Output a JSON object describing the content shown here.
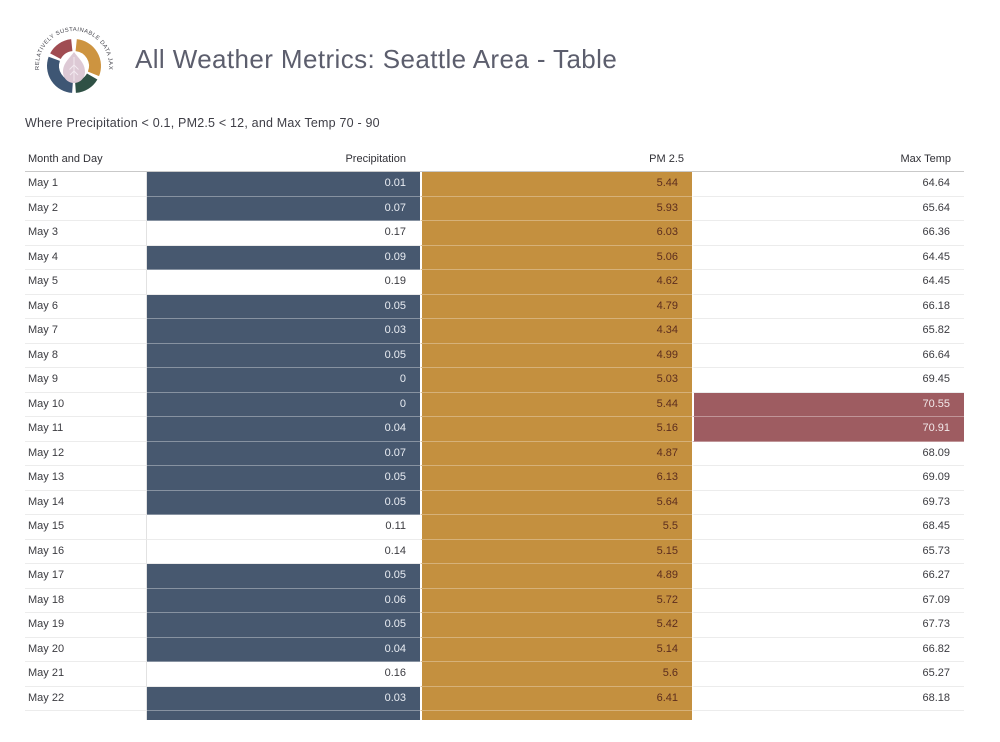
{
  "header": {
    "title": "All Weather Metrics: Seattle Area - Table",
    "logo_text": "RELATIVELY SUSTAINABLE DATA JAX"
  },
  "filter_text": "Where Precipitation < 0.1, PM2.5 < 12, and Max Temp 70 - 90",
  "chart_data": {
    "type": "table",
    "title": "All Weather Metrics: Seattle Area - Table",
    "subtitle": "Where Precipitation < 0.1, PM2.5 < 12, and Max Temp 70 - 90",
    "columns": [
      "Month and Day",
      "Precipitation",
      "PM 2.5",
      "Max Temp"
    ],
    "rows": [
      [
        "May 1",
        0.01,
        5.44,
        64.64
      ],
      [
        "May 2",
        0.07,
        5.93,
        65.64
      ],
      [
        "May 3",
        0.17,
        6.03,
        66.36
      ],
      [
        "May 4",
        0.09,
        5.06,
        64.45
      ],
      [
        "May 5",
        0.19,
        4.62,
        64.45
      ],
      [
        "May 6",
        0.05,
        4.79,
        66.18
      ],
      [
        "May 7",
        0.03,
        4.34,
        65.82
      ],
      [
        "May 8",
        0.05,
        4.99,
        66.64
      ],
      [
        "May 9",
        0,
        5.03,
        69.45
      ],
      [
        "May 10",
        0,
        5.44,
        70.55
      ],
      [
        "May 11",
        0.04,
        5.16,
        70.91
      ],
      [
        "May 12",
        0.07,
        4.87,
        68.09
      ],
      [
        "May 13",
        0.05,
        6.13,
        69.09
      ],
      [
        "May 14",
        0.05,
        5.64,
        69.73
      ],
      [
        "May 15",
        0.11,
        5.5,
        68.45
      ],
      [
        "May 16",
        0.14,
        5.15,
        65.73
      ],
      [
        "May 17",
        0.05,
        4.89,
        66.27
      ],
      [
        "May 18",
        0.06,
        5.72,
        67.09
      ],
      [
        "May 19",
        0.05,
        5.42,
        67.73
      ],
      [
        "May 20",
        0.04,
        5.14,
        66.82
      ],
      [
        "May 21",
        0.16,
        5.6,
        65.27
      ],
      [
        "May 22",
        0.03,
        6.41,
        68.18
      ]
    ],
    "highlight_rules": {
      "precipitation_lt": 0.1,
      "pm25_lt": 12,
      "max_temp_range": [
        70,
        90
      ]
    },
    "highlight_colors": {
      "precipitation": "#47586f",
      "pm25": "#c4903f",
      "max_temp": "#9e5c61"
    }
  }
}
